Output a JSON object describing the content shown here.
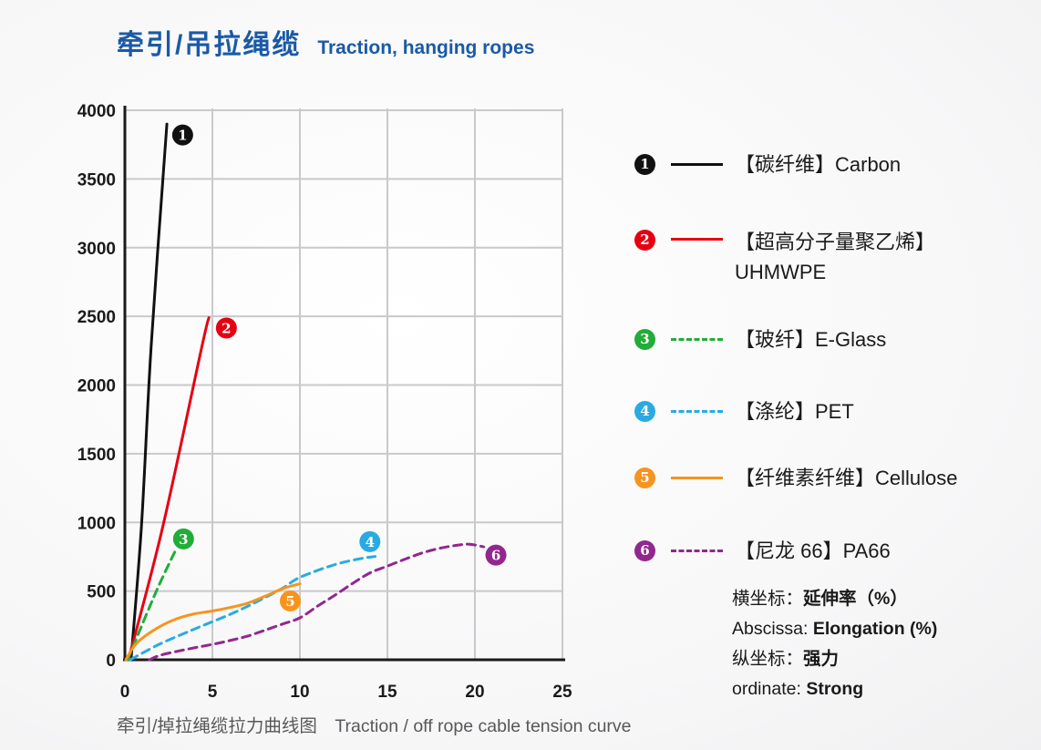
{
  "header": {
    "title_cn": "牵引/吊拉绳缆",
    "title_en": "Traction, hanging ropes",
    "title_color": "#1a5aa6"
  },
  "caption": {
    "cn": "牵引/掉拉绳缆拉力曲线图",
    "en": "Traction / off rope cable tension curve"
  },
  "notes": [
    {
      "prefix": "横坐标：",
      "value": "延伸率（%）"
    },
    {
      "prefix": "Abscissa: ",
      "value": "Elongation (%)"
    },
    {
      "prefix": "纵坐标：",
      "value": "强力"
    },
    {
      "prefix": "ordinate: ",
      "value": "Strong"
    }
  ],
  "colors": {
    "grid": "#c9c9cb",
    "axis": "#1a1a1a",
    "caption_gray": "#595757"
  },
  "chart_data": {
    "type": "line",
    "title": "牵引/掉拉绳缆拉力曲线图 Traction / off rope cable tension curve",
    "xlabel": "Elongation (%)",
    "ylabel": "Strong",
    "xlim": [
      0,
      25
    ],
    "ylim": [
      0,
      4000
    ],
    "x_ticks": [
      0,
      5,
      10,
      15,
      20,
      25
    ],
    "y_ticks": [
      0,
      500,
      1000,
      1500,
      2000,
      2500,
      3000,
      3500,
      4000
    ],
    "grid": true,
    "legend_position": "right",
    "series": [
      {
        "num": "1",
        "key": "carbon",
        "color": "#111111",
        "dash": false,
        "legend_label": "【碳纤维】Carbon",
        "legend_label2": "",
        "points": [
          [
            0.35,
            0
          ],
          [
            0.95,
            980
          ],
          [
            1.5,
            2280
          ],
          [
            2.4,
            3900
          ]
        ],
        "badge_at": [
          3.3,
          3820
        ]
      },
      {
        "num": "2",
        "key": "uhmwpe",
        "color": "#e60012",
        "dash": false,
        "legend_label": "【超高分子量聚乙烯】",
        "legend_label2": "UHMWPE",
        "points": [
          [
            0.2,
            0
          ],
          [
            2.15,
            960
          ],
          [
            4.4,
            2280
          ],
          [
            4.8,
            2490
          ]
        ],
        "badge_at": [
          5.8,
          2415
        ]
      },
      {
        "num": "3",
        "key": "eglass",
        "color": "#22ac38",
        "dash": true,
        "legend_label": "【玻纤】E-Glass",
        "legend_label2": "",
        "points": [
          [
            0.15,
            0
          ],
          [
            1.8,
            500
          ],
          [
            2.85,
            785
          ]
        ],
        "badge_at": [
          3.35,
          880
        ]
      },
      {
        "num": "4",
        "key": "pet",
        "color": "#29abe2",
        "dash": true,
        "legend_label": "【涤纶】PET",
        "legend_label2": "",
        "points": [
          [
            0.3,
            0
          ],
          [
            2,
            115
          ],
          [
            4,
            225
          ],
          [
            6,
            330
          ],
          [
            7.5,
            420
          ],
          [
            9,
            520
          ],
          [
            10,
            600
          ],
          [
            12,
            693
          ],
          [
            13.5,
            737
          ],
          [
            14.3,
            752
          ]
        ],
        "badge_at": [
          14.0,
          860
        ]
      },
      {
        "num": "5",
        "key": "cellulose",
        "color": "#f7941e",
        "dash": false,
        "legend_label": "【纤维素纤维】Cellulose",
        "legend_label2": "",
        "points": [
          [
            0.05,
            0
          ],
          [
            0.5,
            95
          ],
          [
            1,
            158
          ],
          [
            2,
            242
          ],
          [
            3,
            300
          ],
          [
            4,
            335
          ],
          [
            5,
            355
          ],
          [
            6,
            380
          ],
          [
            7,
            412
          ],
          [
            8,
            462
          ],
          [
            9,
            517
          ],
          [
            10,
            553
          ]
        ],
        "badge_at": [
          9.45,
          428
        ]
      },
      {
        "num": "6",
        "key": "pa66",
        "color": "#92278f",
        "dash": true,
        "legend_label": "【尼龙 66】PA66",
        "legend_label2": "",
        "points": [
          [
            1.4,
            0
          ],
          [
            2,
            32
          ],
          [
            3,
            62
          ],
          [
            4,
            88
          ],
          [
            5,
            112
          ],
          [
            6,
            140
          ],
          [
            7,
            172
          ],
          [
            8,
            215
          ],
          [
            9,
            260
          ],
          [
            10,
            305
          ],
          [
            11,
            390
          ],
          [
            12,
            470
          ],
          [
            13,
            555
          ],
          [
            14,
            632
          ],
          [
            15,
            682
          ],
          [
            16,
            732
          ],
          [
            17,
            778
          ],
          [
            18,
            812
          ],
          [
            19,
            834
          ],
          [
            19.7,
            841
          ],
          [
            20.5,
            822
          ]
        ],
        "badge_at": [
          21.2,
          762
        ]
      }
    ]
  }
}
